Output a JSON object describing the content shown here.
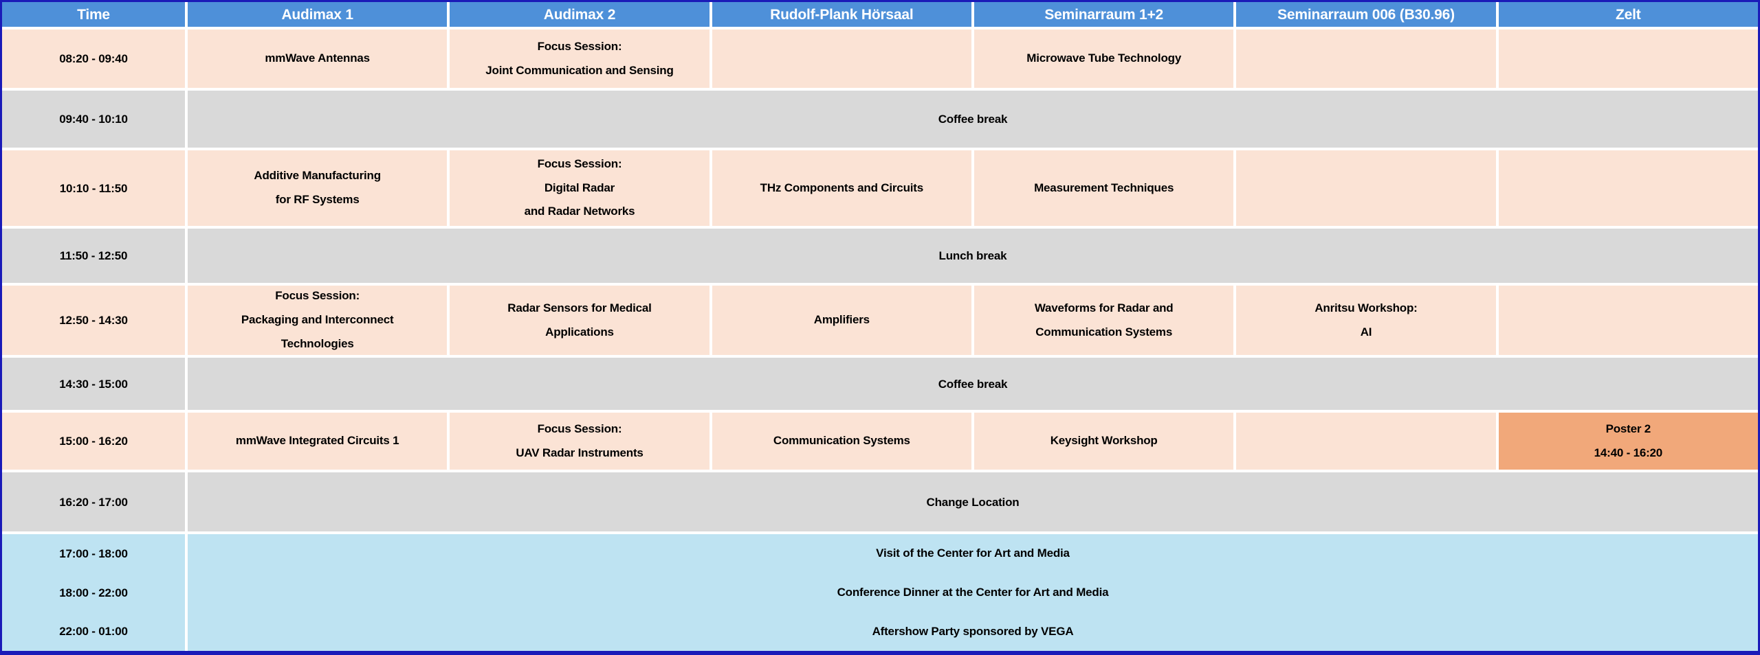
{
  "columns": [
    "Time",
    "Audimax 1",
    "Audimax 2",
    "Rudolf-Plank Hörsaal",
    "Seminarraum 1+2",
    "Seminarraum 006 (B30.96)",
    "Zelt"
  ],
  "rows": [
    {
      "kind": "session",
      "time": "08:20 - 09:40",
      "cells": [
        "mmWave Antennas",
        "Focus Session:\nJoint Communication and Sensing",
        "",
        "Microwave Tube Technology",
        "",
        ""
      ]
    },
    {
      "kind": "break",
      "time": "09:40 - 10:10",
      "label": "Coffee break"
    },
    {
      "kind": "session",
      "time": "10:10 - 11:50",
      "cells": [
        "Additive Manufacturing\nfor RF Systems",
        "Focus Session:\nDigital Radar\nand Radar Networks",
        "THz Components and Circuits",
        "Measurement Techniques",
        "",
        ""
      ]
    },
    {
      "kind": "break",
      "time": "11:50 - 12:50",
      "label": "Lunch break"
    },
    {
      "kind": "session",
      "time": "12:50 - 14:30",
      "cells": [
        "Focus Session:\nPackaging and Interconnect\nTechnologies",
        "Radar Sensors for Medical\nApplications",
        "Amplifiers",
        "Waveforms for Radar and\nCommunication Systems",
        "Anritsu Workshop:\nAI",
        ""
      ]
    },
    {
      "kind": "break",
      "time": "14:30 - 15:00",
      "label": "Coffee break"
    },
    {
      "kind": "session",
      "time": "15:00 - 16:20",
      "cells": [
        "mmWave Integrated Circuits 1",
        "Focus Session:\nUAV Radar Instruments",
        "Communication Systems",
        "Keysight Workshop",
        "",
        "Poster 2\n14:40 - 16:20"
      ],
      "highlight_col": 5
    },
    {
      "kind": "break",
      "time": "16:20 - 17:00",
      "label": "Change Location"
    }
  ],
  "evening": {
    "slots": [
      {
        "time": "17:00 - 18:00",
        "event": "Visit of the Center for Art and Media"
      },
      {
        "time": "18:00 - 22:00",
        "event": "Conference Dinner at the Center for Art and Media"
      },
      {
        "time": "22:00 - 01:00",
        "event": "Aftershow Party sponsored by VEGA"
      }
    ]
  },
  "colors": {
    "header_bg": "#4e90d9",
    "header_text": "#ffffff",
    "session_bg": "#fbe3d5",
    "break_bg": "#d9d9d9",
    "evening_bg": "#bee3f2",
    "highlight_bg": "#f1a87a",
    "outer_border": "#1a1ab8",
    "grid_lines": "#ffffff",
    "body_text": "#000000"
  }
}
